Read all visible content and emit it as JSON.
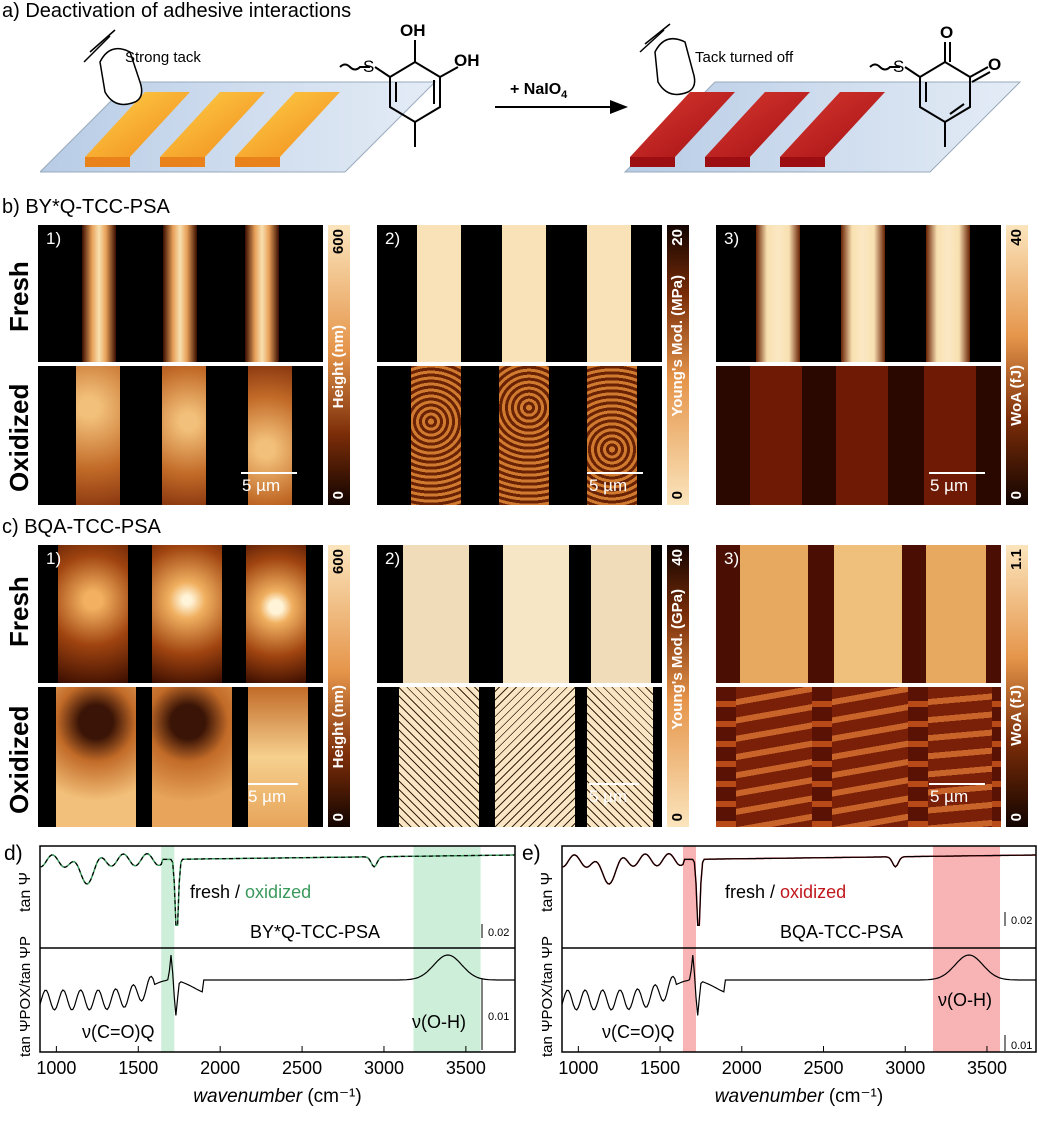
{
  "section_a": {
    "title": "a) Deactivation of adhesive interactions",
    "left_label": "Strong tack",
    "right_label": "Tack turned off",
    "reagent": "+ NaIO",
    "reagent_sub": "4",
    "atom_S": "S",
    "atom_OH": "OH",
    "atom_O": "O"
  },
  "section_b": {
    "title": "b) BY*Q-TCC-PSA",
    "row_fresh": "Fresh",
    "row_oxidized": "Oxidized",
    "panels": [
      {
        "label": "1)",
        "colorbar": "Height (nm)",
        "max": "600",
        "min": "0",
        "scale": "5 µm"
      },
      {
        "label": "2)",
        "colorbar": "Young's Mod. (MPa)",
        "max": "20",
        "min": "0",
        "scale": "5 µm"
      },
      {
        "label": "3)",
        "colorbar": "WoA (fJ)",
        "max": "40",
        "min": "0",
        "scale": "5 µm"
      }
    ]
  },
  "section_c": {
    "title": "c) BQA-TCC-PSA",
    "row_fresh": "Fresh",
    "row_oxidized": "Oxidized",
    "panels": [
      {
        "label": "1)",
        "colorbar": "Height (nm)",
        "max": "600",
        "min": "0",
        "scale": "5 µm"
      },
      {
        "label": "2)",
        "colorbar": "Young's Mod. (GPa)",
        "max": "40",
        "min": "0",
        "scale": "5 µm"
      },
      {
        "label": "3)",
        "colorbar": "WoA (fJ)",
        "max": "1.1",
        "min": "0",
        "scale": "5 µm"
      }
    ]
  },
  "chart_data": [
    {
      "panel": "d)",
      "type": "line",
      "title": "BY*Q-TCC-PSA",
      "xlabel": "wavenumber (cm⁻¹)",
      "xlim": [
        900,
        3800
      ],
      "xticks": [
        "1000",
        "1500",
        "2000",
        "2500",
        "3000",
        "3500"
      ],
      "ylabel_top": "tan Ψ",
      "ylabel_bottom": "tan ΨPOX/tan ΨP",
      "legend": [
        "fresh",
        "/",
        "oxidized"
      ],
      "legend_colors": [
        "#000000",
        "#3a9a5c"
      ],
      "scale_top": "0.02",
      "scale_bottom": "0.01",
      "annotations": [
        "ν(C=O)Q",
        "ν(O-H)"
      ],
      "highlight_bands": [
        [
          1640,
          1720
        ],
        [
          3180,
          3590
        ]
      ],
      "highlight_color": "#cdeed9"
    },
    {
      "panel": "e)",
      "type": "line",
      "title": "BQA-TCC-PSA",
      "xlabel": "wavenumber (cm⁻¹)",
      "xlim": [
        900,
        3800
      ],
      "xticks": [
        "1000",
        "1500",
        "2000",
        "2500",
        "3000",
        "3500"
      ],
      "ylabel_top": "tan Ψ",
      "ylabel_bottom": "tan ΨPOX/tan ΨP",
      "legend": [
        "fresh",
        "/",
        "oxidized"
      ],
      "legend_colors": [
        "#000000",
        "#c0161c"
      ],
      "scale_top": "0.02",
      "scale_bottom": "0.01",
      "annotations": [
        "ν(C=O)Q",
        "ν(O-H)"
      ],
      "highlight_bands": [
        [
          1640,
          1720
        ],
        [
          3170,
          3580
        ]
      ],
      "highlight_color": "#f8b4b4"
    }
  ],
  "colors": {
    "afm_dark": "#120400",
    "afm_mid": "#c2571a",
    "afm_light": "#f8e0b0",
    "green_band": "#cdeed9",
    "red_band": "#f8b4b4",
    "oxidized_green": "#3a9a5c",
    "oxidized_red": "#c0161c"
  }
}
